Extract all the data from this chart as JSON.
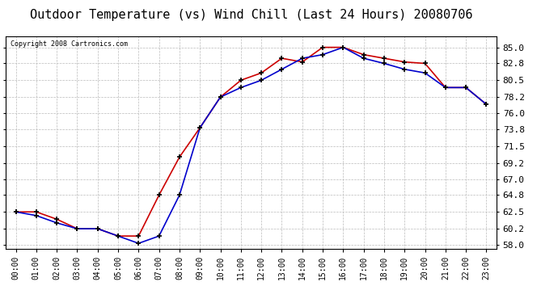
{
  "title": "Outdoor Temperature (vs) Wind Chill (Last 24 Hours) 20080706",
  "copyright": "Copyright 2008 Cartronics.com",
  "hours": [
    "00:00",
    "01:00",
    "02:00",
    "03:00",
    "04:00",
    "05:00",
    "06:00",
    "07:00",
    "08:00",
    "09:00",
    "10:00",
    "11:00",
    "12:00",
    "13:00",
    "14:00",
    "15:00",
    "16:00",
    "17:00",
    "18:00",
    "19:00",
    "20:00",
    "21:00",
    "22:00",
    "23:00"
  ],
  "temp": [
    62.5,
    62.5,
    61.5,
    60.2,
    60.2,
    59.2,
    59.2,
    64.8,
    70.0,
    74.0,
    78.2,
    80.5,
    81.5,
    83.5,
    83.0,
    85.0,
    85.0,
    84.0,
    83.5,
    83.0,
    82.8,
    79.5,
    79.5,
    77.2
  ],
  "windchill": [
    62.5,
    62.0,
    61.0,
    60.2,
    60.2,
    59.2,
    58.2,
    59.2,
    64.8,
    74.0,
    78.2,
    79.5,
    80.5,
    82.0,
    83.5,
    84.0,
    85.0,
    83.5,
    82.8,
    82.0,
    81.5,
    79.5,
    79.5,
    77.2
  ],
  "temp_color": "#cc0000",
  "windchill_color": "#0000cc",
  "ylim": [
    57.5,
    86.5
  ],
  "yticks": [
    58.0,
    60.2,
    62.5,
    64.8,
    67.0,
    69.2,
    71.5,
    73.8,
    76.0,
    78.2,
    80.5,
    82.8,
    85.0
  ],
  "bg_color": "#ffffff",
  "grid_color": "#bbbbbb",
  "title_fontsize": 11,
  "marker": "+",
  "marker_color": "#000000",
  "marker_size": 5,
  "marker_linewidth": 1.2,
  "line_width": 1.2
}
